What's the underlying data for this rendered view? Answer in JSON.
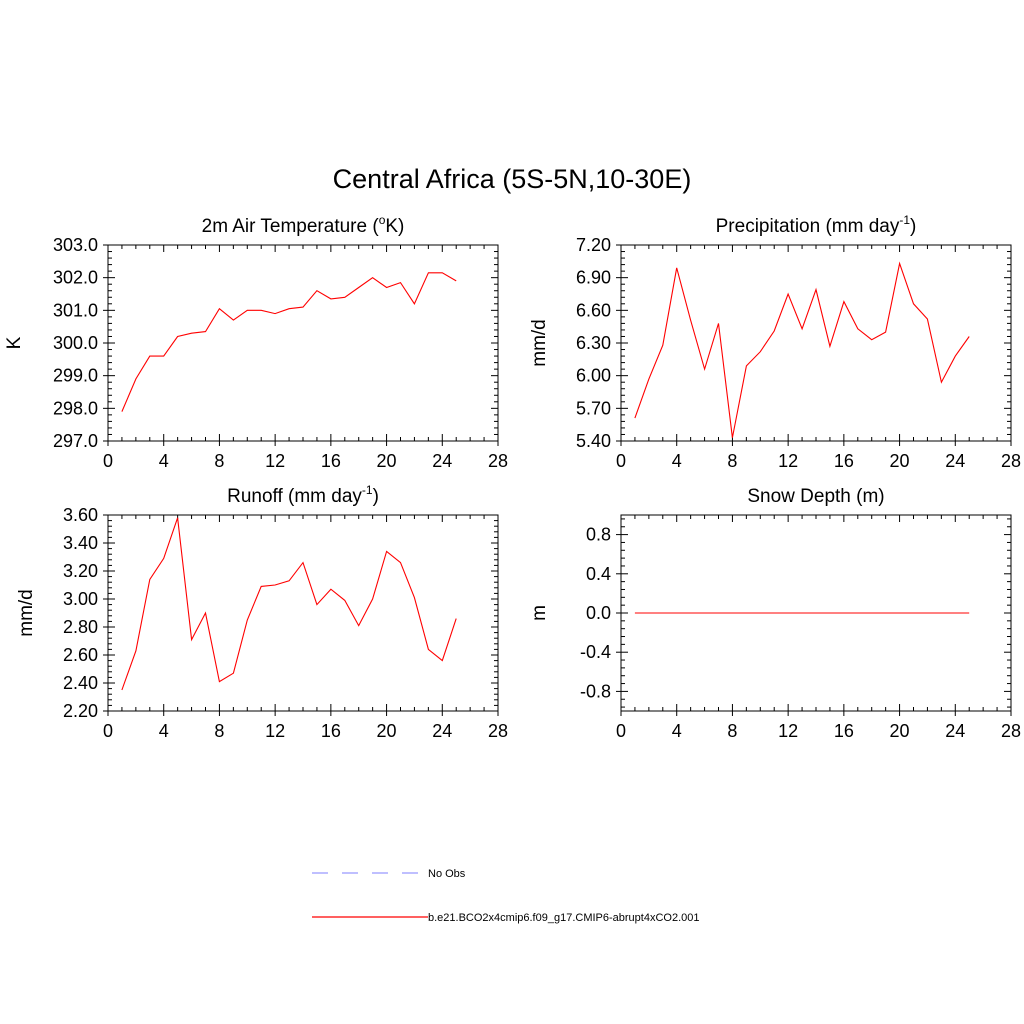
{
  "figure": {
    "title": "Central Africa (5S-5N,10-30E)"
  },
  "legend": {
    "entries": [
      {
        "label": "No Obs",
        "color": "#9999ff",
        "style": "dashed"
      },
      {
        "label": "b.e21.BCO2x4cmip6.f09_g17.CMIP6-abrupt4xCO2.001",
        "color": "#ff0000",
        "style": "solid"
      }
    ]
  },
  "chart_data": [
    {
      "type": "line",
      "title": "2m Air Temperature (",
      "title_sup": "o",
      "title_after": "K)",
      "ylabel": "K",
      "x": [
        1,
        2,
        3,
        4,
        5,
        6,
        7,
        8,
        9,
        10,
        11,
        12,
        13,
        14,
        15,
        16,
        17,
        18,
        19,
        20,
        21,
        22,
        23,
        24,
        25
      ],
      "series": [
        {
          "values": [
            297.9,
            298.9,
            299.6,
            299.6,
            300.2,
            300.3,
            300.35,
            301.05,
            300.7,
            301.0,
            301.0,
            300.9,
            301.05,
            301.1,
            301.6,
            301.35,
            301.4,
            301.7,
            302.0,
            301.7,
            301.85,
            301.2,
            302.15,
            302.15,
            301.9
          ],
          "color": "#ff0000"
        }
      ],
      "xlim": [
        0,
        28
      ],
      "ylim": [
        297.0,
        303.0
      ],
      "xticks": [
        "0",
        "4",
        "8",
        "12",
        "16",
        "20",
        "24",
        "28"
      ],
      "yticks": [
        "297.0",
        "298.0",
        "299.0",
        "300.0",
        "301.0",
        "302.0",
        "303.0"
      ]
    },
    {
      "type": "line",
      "title": "Precipitation (mm day",
      "title_sup": "-1",
      "title_after": ")",
      "ylabel": "mm/d",
      "x": [
        1,
        2,
        3,
        4,
        5,
        6,
        7,
        8,
        9,
        10,
        11,
        12,
        13,
        14,
        15,
        16,
        17,
        18,
        19,
        20,
        21,
        22,
        23,
        24,
        25
      ],
      "series": [
        {
          "values": [
            5.61,
            5.97,
            6.28,
            6.99,
            6.51,
            6.06,
            6.48,
            5.43,
            6.09,
            6.22,
            6.41,
            6.75,
            6.43,
            6.79,
            6.27,
            6.68,
            6.43,
            6.33,
            6.4,
            7.03,
            6.66,
            6.52,
            5.94,
            6.18,
            6.36
          ],
          "color": "#ff0000"
        }
      ],
      "xlim": [
        0,
        28
      ],
      "ylim": [
        5.4,
        7.2
      ],
      "xticks": [
        "0",
        "4",
        "8",
        "12",
        "16",
        "20",
        "24",
        "28"
      ],
      "yticks": [
        "5.40",
        "5.70",
        "6.00",
        "6.30",
        "6.60",
        "6.90",
        "7.20"
      ]
    },
    {
      "type": "line",
      "title": "Runoff (mm day",
      "title_sup": "-1",
      "title_after": ")",
      "ylabel": "mm/d",
      "x": [
        1,
        2,
        3,
        4,
        5,
        6,
        7,
        8,
        9,
        10,
        11,
        12,
        13,
        14,
        15,
        16,
        17,
        18,
        19,
        20,
        21,
        22,
        23,
        24,
        25
      ],
      "series": [
        {
          "values": [
            2.35,
            2.63,
            3.14,
            3.29,
            3.58,
            2.71,
            2.9,
            2.41,
            2.47,
            2.85,
            3.09,
            3.1,
            3.13,
            3.26,
            2.96,
            3.07,
            2.99,
            2.81,
            3.0,
            3.34,
            3.26,
            3.01,
            2.64,
            2.56,
            2.86
          ],
          "color": "#ff0000"
        }
      ],
      "xlim": [
        0,
        28
      ],
      "ylim": [
        2.2,
        3.6
      ],
      "xticks": [
        "0",
        "4",
        "8",
        "12",
        "16",
        "20",
        "24",
        "28"
      ],
      "yticks": [
        "2.20",
        "2.40",
        "2.60",
        "2.80",
        "3.00",
        "3.20",
        "3.40",
        "3.60"
      ]
    },
    {
      "type": "line",
      "title": "Snow Depth (m)",
      "title_sup": "",
      "title_after": "",
      "ylabel": "m",
      "x": [
        1,
        2,
        3,
        4,
        5,
        6,
        7,
        8,
        9,
        10,
        11,
        12,
        13,
        14,
        15,
        16,
        17,
        18,
        19,
        20,
        21,
        22,
        23,
        24,
        25
      ],
      "series": [
        {
          "values": [
            0,
            0,
            0,
            0,
            0,
            0,
            0,
            0,
            0,
            0,
            0,
            0,
            0,
            0,
            0,
            0,
            0,
            0,
            0,
            0,
            0,
            0,
            0,
            0,
            0
          ],
          "color": "#ff0000"
        }
      ],
      "xlim": [
        0,
        28
      ],
      "ylim": [
        -1.0,
        1.0
      ],
      "xticks": [
        "0",
        "4",
        "8",
        "12",
        "16",
        "20",
        "24",
        "28"
      ],
      "yticks": [
        "-0.8",
        "-0.4",
        "0.0",
        "0.4",
        "0.8"
      ],
      "ytick_values": [
        -0.8,
        -0.4,
        0.0,
        0.4,
        0.8
      ]
    }
  ]
}
